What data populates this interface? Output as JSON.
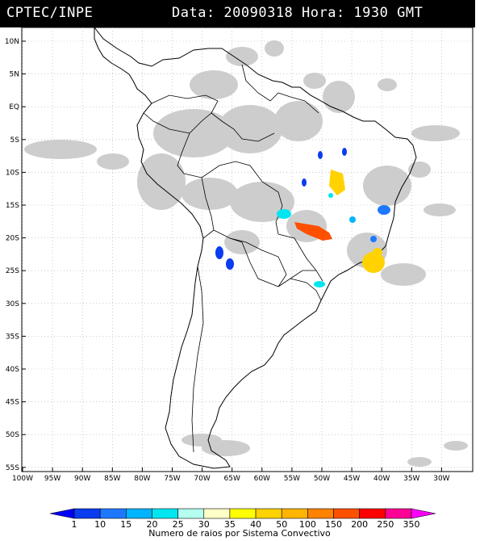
{
  "header": {
    "source": "CPTEC/INPE",
    "datetime": "Data: 20090318 Hora: 1930 GMT"
  },
  "axes": {
    "lat_labels": [
      "10N",
      "5N",
      "EQ",
      "5S",
      "10S",
      "15S",
      "20S",
      "25S",
      "30S",
      "35S",
      "40S",
      "45S",
      "50S",
      "55S"
    ],
    "lon_labels": [
      "100W",
      "95W",
      "90W",
      "85W",
      "80W",
      "75W",
      "70W",
      "65W",
      "60W",
      "55W",
      "50W",
      "45W",
      "40W",
      "35W",
      "30W"
    ]
  },
  "legend": {
    "title": "Numero de raios por Sistema Convectivo",
    "labels": [
      "1",
      "10",
      "15",
      "20",
      "25",
      "30",
      "35",
      "40",
      "50",
      "100",
      "150",
      "200",
      "250",
      "350"
    ],
    "colors": [
      "#0000ff",
      "#0a3cf0",
      "#1e78ff",
      "#00b4ff",
      "#00e6f0",
      "#b4fff0",
      "#ffffc8",
      "#ffff00",
      "#ffd200",
      "#ffb400",
      "#ff8200",
      "#ff5000",
      "#ff0000",
      "#ff0096",
      "#ff00ff"
    ]
  }
}
